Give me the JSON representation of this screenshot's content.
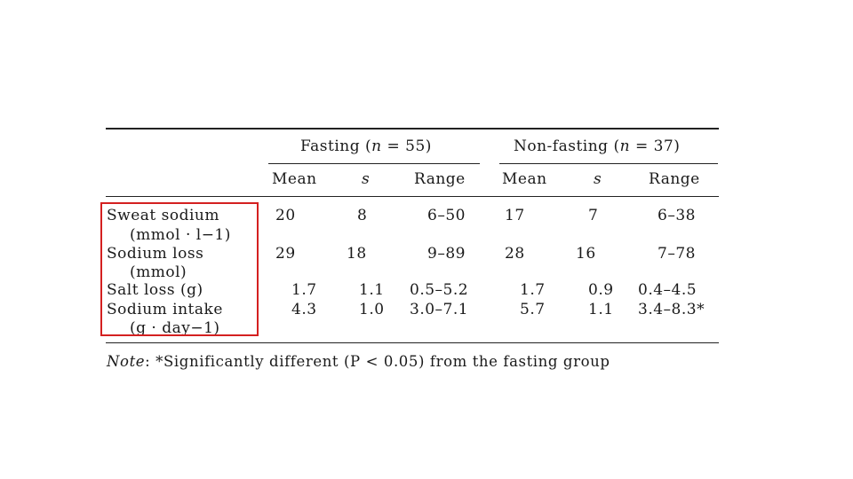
{
  "table": {
    "group_headers": {
      "fasting": {
        "label": "Fasting (",
        "n": "n",
        "eq": " = 55)"
      },
      "non_fasting": {
        "label": "Non-fasting (",
        "n": "n",
        "eq": " = 37)"
      }
    },
    "columns": [
      "Mean",
      "s",
      "Range",
      "Mean",
      "s",
      "Range"
    ],
    "rows": [
      {
        "label": "Sweat sodium",
        "label2": "(mmol · l−1)",
        "values": [
          "20",
          "8",
          "6–50",
          "17",
          "7",
          "6–38"
        ]
      },
      {
        "label": "Sodium loss",
        "label2": "(mmol)",
        "values": [
          "29",
          "18",
          "9–89",
          "28",
          "16",
          "7–78"
        ]
      },
      {
        "label": "Salt loss (g)",
        "label2": "",
        "values": [
          "1.7",
          "1.1",
          "0.5–5.2",
          "1.7",
          "0.9",
          "0.4–4.5"
        ]
      },
      {
        "label": "Sodium intake",
        "label2": "(g · day−1)",
        "values": [
          "4.3",
          "1.0",
          "3.0–7.1",
          "5.7",
          "1.1",
          "3.4–8.3*"
        ]
      }
    ],
    "note_label": "Note",
    "note_text": ": *Significantly different (P < 0.05) from the fasting group"
  },
  "highlight_color": "#d42020"
}
